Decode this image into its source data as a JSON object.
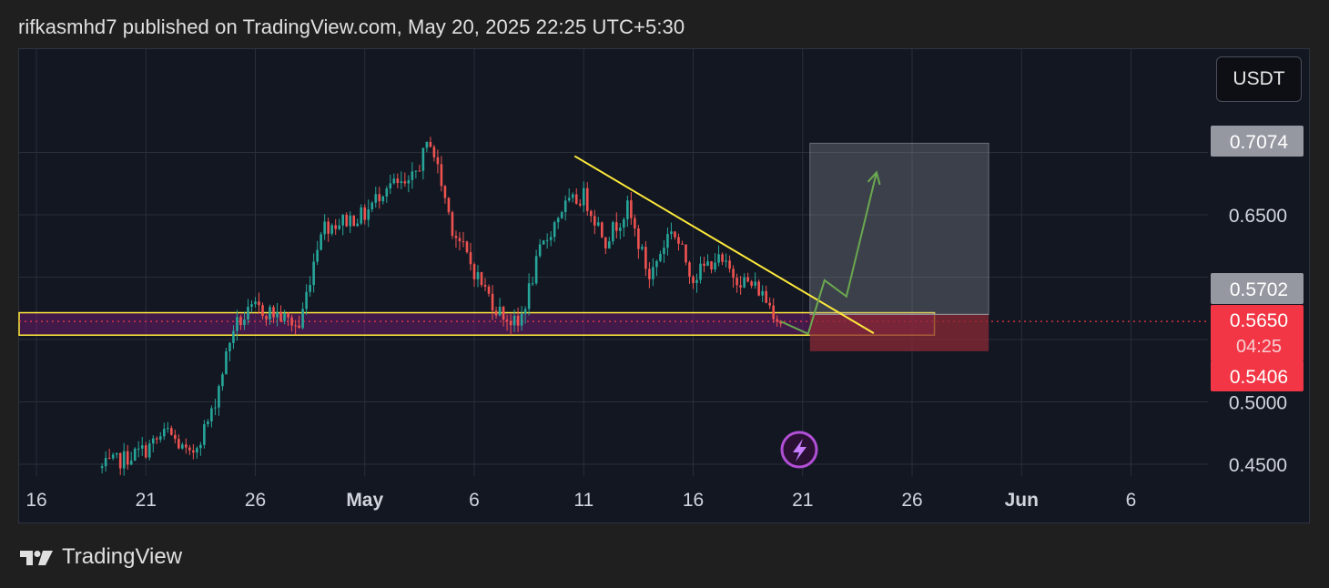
{
  "header": {
    "text": "rifkasmhd7 published on TradingView.com, May 20, 2025 22:25 UTC+5:30"
  },
  "currency": "USDT",
  "footer": {
    "brand": "TradingView"
  },
  "colors": {
    "up": "#26a69a",
    "down": "#ef5350",
    "trendline": "#ffeb3b",
    "zone_fill": "#7b1f7a",
    "target_fill": "#9598a1",
    "stop_fill": "#8b2a36",
    "path": "#6aa84f",
    "price_label": "#f23645",
    "gray_label": "#787b86"
  },
  "chart_data": {
    "type": "candlestick",
    "x_tick_labels": [
      "16",
      "21",
      "26",
      "May",
      "6",
      "11",
      "16",
      "21",
      "26",
      "Jun",
      "6"
    ],
    "y_tick_labels": [
      "0.4500",
      "0.5000",
      "0.6500"
    ],
    "y_range": [
      0.4452,
      0.7226
    ],
    "price_labels": {
      "target": "0.7074",
      "entry": "0.5702",
      "current": "0.5650",
      "countdown": "04:25",
      "stop": "0.5406"
    },
    "price_path_anchors": [
      {
        "date": "Apr 19",
        "price": 0.447
      },
      {
        "date": "Apr 21",
        "price": 0.462
      },
      {
        "date": "Apr 22",
        "price": 0.476
      },
      {
        "date": "Apr 23",
        "price": 0.455
      },
      {
        "date": "Apr 24",
        "price": 0.49
      },
      {
        "date": "Apr 25",
        "price": 0.56
      },
      {
        "date": "Apr 26",
        "price": 0.575
      },
      {
        "date": "Apr 27",
        "price": 0.57
      },
      {
        "date": "Apr 28",
        "price": 0.56
      },
      {
        "date": "Apr 29",
        "price": 0.64
      },
      {
        "date": "Apr 30",
        "price": 0.645
      },
      {
        "date": "May 1",
        "price": 0.65
      },
      {
        "date": "May 2",
        "price": 0.675
      },
      {
        "date": "May 3",
        "price": 0.672
      },
      {
        "date": "May 4",
        "price": 0.71
      },
      {
        "date": "May 5",
        "price": 0.64
      },
      {
        "date": "May 6",
        "price": 0.605
      },
      {
        "date": "May 7",
        "price": 0.575
      },
      {
        "date": "May 8",
        "price": 0.56
      },
      {
        "date": "May 9",
        "price": 0.62
      },
      {
        "date": "May 10",
        "price": 0.655
      },
      {
        "date": "May 11",
        "price": 0.665
      },
      {
        "date": "May 12",
        "price": 0.63
      },
      {
        "date": "May 13",
        "price": 0.655
      },
      {
        "date": "May 14",
        "price": 0.6
      },
      {
        "date": "May 15",
        "price": 0.64
      },
      {
        "date": "May 16",
        "price": 0.6
      },
      {
        "date": "May 17",
        "price": 0.615
      },
      {
        "date": "May 18",
        "price": 0.6
      },
      {
        "date": "May 19",
        "price": 0.59
      },
      {
        "date": "May 20",
        "price": 0.565
      }
    ],
    "support_zone": {
      "top": 0.5715,
      "bottom": 0.5535,
      "from": "Apr 15",
      "to": "May 27"
    },
    "trendline": [
      {
        "date": "May 11",
        "price": 0.6975
      },
      {
        "date": "May 24",
        "price": 0.555
      }
    ],
    "position": {
      "entry": 0.5702,
      "target": 0.7074,
      "stop": 0.5406,
      "from": "May 21",
      "to": "May 29"
    },
    "projected_path": [
      {
        "date": "May 20",
        "price": 0.5645
      },
      {
        "date": "May 21",
        "price": 0.5545
      },
      {
        "date": "May 22",
        "price": 0.5975
      },
      {
        "date": "May 23",
        "price": 0.5845
      },
      {
        "date": "May 25",
        "price": 0.684
      }
    ]
  }
}
